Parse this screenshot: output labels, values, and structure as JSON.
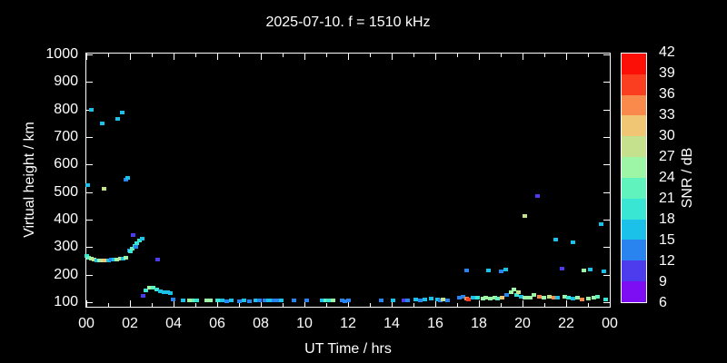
{
  "title": "2025-07-10. f = 1510 kHz",
  "x_axis": {
    "label": "UT Time / hrs",
    "tick_labels": [
      "00",
      "02",
      "04",
      "06",
      "08",
      "10",
      "12",
      "14",
      "16",
      "18",
      "20",
      "22",
      "00"
    ],
    "major_tick_every_hours": 2,
    "minor_tick_every_hours": 1
  },
  "y_axis": {
    "label": "Virtual height / km",
    "tick_labels": [
      "1000",
      "900",
      "800",
      "700",
      "600",
      "500",
      "400",
      "300",
      "200",
      "100"
    ]
  },
  "colorbar": {
    "label": "SNR / dB",
    "tick_labels": [
      "42",
      "39",
      "36",
      "33",
      "30",
      "27",
      "24",
      "21",
      "18",
      "15",
      "12",
      "9",
      "6"
    ],
    "range_db": [
      6,
      42
    ],
    "step_db": 3,
    "colors_high_to_low": [
      "#fb0f07",
      "#fb3d20",
      "#f98a4b",
      "#f0c573",
      "#c5e18e",
      "#9df5a6",
      "#60f3bd",
      "#39e5d3",
      "#1bc1e8",
      "#2a84ef",
      "#4d3cee",
      "#7d0df2"
    ]
  },
  "chart_data": {
    "type": "scatter",
    "title": "2025-07-10. f = 1510 kHz",
    "xlabel": "UT Time / hrs",
    "ylabel": "Virtual height / km",
    "color_label": "SNR / dB",
    "xlim": [
      0,
      24
    ],
    "ylim": [
      100,
      1000
    ],
    "color_lim": [
      6,
      42
    ],
    "background": "#000000",
    "points_format": [
      "hour_ut",
      "virtual_height_km",
      "snr_db"
    ],
    "points": [
      [
        0.05,
        525,
        16
      ],
      [
        0.2,
        800,
        16
      ],
      [
        0.7,
        748,
        16
      ],
      [
        0.8,
        513,
        28
      ],
      [
        1.4,
        765,
        16
      ],
      [
        1.62,
        788,
        16
      ],
      [
        1.78,
        545,
        13
      ],
      [
        1.88,
        552,
        16
      ],
      [
        0.02,
        268,
        19
      ],
      [
        0.1,
        262,
        22
      ],
      [
        0.2,
        258,
        25
      ],
      [
        0.33,
        254,
        28
      ],
      [
        0.46,
        252,
        16
      ],
      [
        0.58,
        251,
        25
      ],
      [
        0.7,
        251,
        28
      ],
      [
        0.84,
        253,
        31
      ],
      [
        1.0,
        252,
        16
      ],
      [
        1.13,
        254,
        13
      ],
      [
        1.25,
        255,
        16
      ],
      [
        1.38,
        256,
        25
      ],
      [
        1.53,
        257,
        28
      ],
      [
        1.66,
        258,
        16
      ],
      [
        1.79,
        261,
        25
      ],
      [
        1.95,
        288,
        13
      ],
      [
        2.0,
        285,
        19
      ],
      [
        2.1,
        295,
        22
      ],
      [
        2.2,
        305,
        19
      ],
      [
        2.3,
        315,
        19
      ],
      [
        2.42,
        323,
        19
      ],
      [
        2.53,
        330,
        16
      ],
      [
        2.12,
        345,
        10
      ],
      [
        2.27,
        300,
        13
      ],
      [
        3.24,
        255,
        10
      ],
      [
        2.58,
        124,
        10
      ],
      [
        2.72,
        142,
        19
      ],
      [
        2.86,
        152,
        25
      ],
      [
        3.05,
        153,
        22
      ],
      [
        3.2,
        147,
        19
      ],
      [
        3.37,
        141,
        16
      ],
      [
        3.56,
        137,
        16
      ],
      [
        3.7,
        135,
        16
      ],
      [
        3.84,
        132,
        16
      ],
      [
        3.94,
        110,
        13
      ],
      [
        4.4,
        106,
        16
      ],
      [
        4.72,
        108,
        25
      ],
      [
        4.9,
        108,
        22
      ],
      [
        5.05,
        106,
        19
      ],
      [
        5.5,
        108,
        25
      ],
      [
        5.68,
        108,
        25
      ],
      [
        6.0,
        106,
        19
      ],
      [
        6.2,
        106,
        16
      ],
      [
        6.4,
        103,
        13
      ],
      [
        6.62,
        106,
        16
      ],
      [
        7.0,
        103,
        13
      ],
      [
        7.2,
        106,
        16
      ],
      [
        7.45,
        103,
        13
      ],
      [
        7.77,
        108,
        16
      ],
      [
        7.92,
        106,
        13
      ],
      [
        8.18,
        106,
        13
      ],
      [
        8.32,
        108,
        16
      ],
      [
        8.45,
        106,
        16
      ],
      [
        8.6,
        106,
        13
      ],
      [
        8.78,
        108,
        13
      ],
      [
        8.92,
        108,
        16
      ],
      [
        9.52,
        106,
        13
      ],
      [
        10.1,
        106,
        13
      ],
      [
        10.8,
        108,
        16
      ],
      [
        10.95,
        108,
        22
      ],
      [
        11.1,
        106,
        19
      ],
      [
        11.28,
        108,
        25
      ],
      [
        11.7,
        106,
        13
      ],
      [
        11.85,
        103,
        13
      ],
      [
        11.98,
        106,
        13
      ],
      [
        13.5,
        108,
        13
      ],
      [
        14.05,
        108,
        16
      ],
      [
        14.55,
        106,
        10
      ],
      [
        14.72,
        108,
        13
      ],
      [
        15.1,
        111,
        16
      ],
      [
        15.3,
        108,
        13
      ],
      [
        15.5,
        111,
        16
      ],
      [
        15.78,
        114,
        16
      ],
      [
        16.1,
        111,
        16
      ],
      [
        16.2,
        108,
        13
      ],
      [
        16.32,
        111,
        28
      ],
      [
        16.55,
        108,
        13
      ],
      [
        17.1,
        118,
        13
      ],
      [
        17.25,
        121,
        13
      ],
      [
        17.4,
        114,
        34
      ],
      [
        17.48,
        111,
        37
      ],
      [
        17.7,
        118,
        16
      ],
      [
        17.9,
        118,
        19
      ],
      [
        18.15,
        114,
        25
      ],
      [
        18.28,
        118,
        25
      ],
      [
        18.5,
        114,
        25
      ],
      [
        18.7,
        118,
        25
      ],
      [
        18.85,
        114,
        22
      ],
      [
        19.05,
        118,
        31
      ],
      [
        19.25,
        125,
        13
      ],
      [
        19.45,
        135,
        25
      ],
      [
        19.58,
        145,
        25
      ],
      [
        19.7,
        128,
        19
      ],
      [
        19.8,
        135,
        28
      ],
      [
        19.9,
        121,
        16
      ],
      [
        20.1,
        118,
        25
      ],
      [
        20.22,
        118,
        25
      ],
      [
        20.35,
        118,
        25
      ],
      [
        20.5,
        125,
        25
      ],
      [
        20.75,
        121,
        34
      ],
      [
        20.95,
        118,
        25
      ],
      [
        21.2,
        121,
        28
      ],
      [
        21.4,
        118,
        34
      ],
      [
        21.6,
        118,
        16
      ],
      [
        21.9,
        121,
        25
      ],
      [
        22.1,
        118,
        19
      ],
      [
        22.3,
        114,
        16
      ],
      [
        22.5,
        118,
        25
      ],
      [
        22.7,
        111,
        34
      ],
      [
        23.0,
        114,
        25
      ],
      [
        23.25,
        118,
        25
      ],
      [
        23.4,
        121,
        22
      ],
      [
        23.8,
        111,
        19
      ],
      [
        17.4,
        215,
        13
      ],
      [
        18.4,
        215,
        16
      ],
      [
        19.0,
        213,
        13
      ],
      [
        19.2,
        219,
        16
      ],
      [
        20.1,
        413,
        28
      ],
      [
        20.65,
        487,
        10
      ],
      [
        21.5,
        327,
        16
      ],
      [
        21.8,
        222,
        10
      ],
      [
        22.3,
        318,
        16
      ],
      [
        22.8,
        215,
        25
      ],
      [
        23.1,
        219,
        16
      ],
      [
        23.6,
        384,
        16
      ],
      [
        23.7,
        212,
        16
      ]
    ]
  }
}
